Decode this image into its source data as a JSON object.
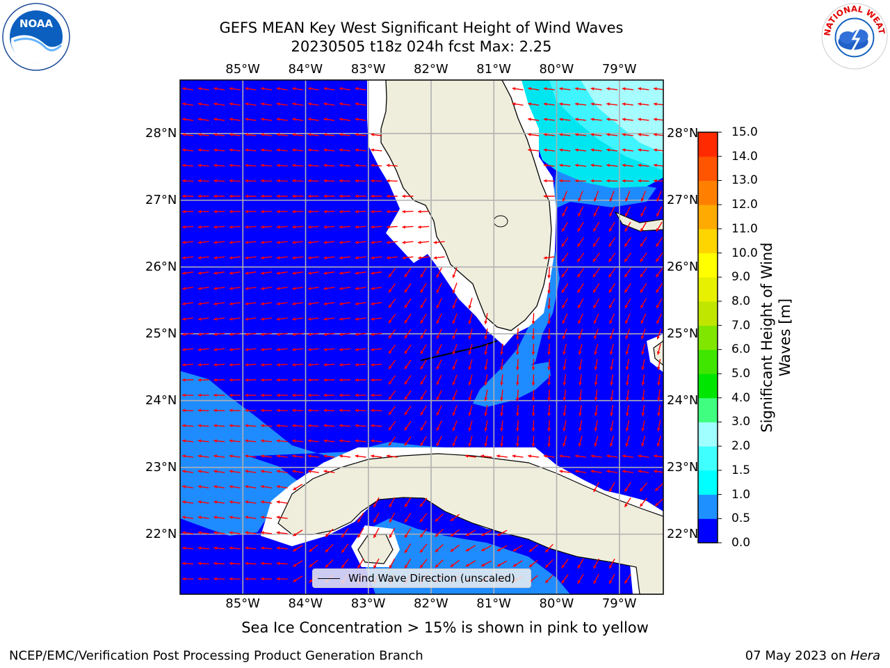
{
  "title": {
    "line1": "GEFS MEAN Key West Significant Height of Wind Waves",
    "line2": "20230505 t18z 024h fcst   Max: 2.25"
  },
  "logos": {
    "left": "NOAA",
    "right": "NATIONAL WEATHER SERVICE"
  },
  "map": {
    "lon_labels": [
      "85°W",
      "84°W",
      "83°W",
      "82°W",
      "81°W",
      "80°W",
      "79°W"
    ],
    "lat_labels": [
      "28°N",
      "27°N",
      "26°N",
      "25°N",
      "24°N",
      "23°N",
      "22°N"
    ],
    "lon_range": [
      -86.0,
      -78.3
    ],
    "lat_range": [
      21.1,
      28.8
    ],
    "legend_label": "Wind Wave Direction (unscaled)",
    "colors": {
      "ocean_low": "#0000ff",
      "land": "#efeedd",
      "arrow": "#ff0000",
      "grid": "#b0b0b0"
    }
  },
  "colorbar": {
    "title": "Significant Height of Wind Waves [m]",
    "title_line1": "Significant Height of Wind",
    "title_line2": "Waves [m]",
    "tick_labels": [
      "15.0",
      "14.0",
      "13.0",
      "12.0",
      "11.0",
      "10.0",
      "9.0",
      "8.0",
      "7.0",
      "6.0",
      "5.0",
      "4.0",
      "3.0",
      "2.0",
      "1.5",
      "1.0",
      "0.5",
      "0.0"
    ],
    "colors": [
      "#0000ff",
      "#1e90ff",
      "#00ffff",
      "#40ffff",
      "#a0ffff",
      "#40ff80",
      "#00e600",
      "#40e600",
      "#80e600",
      "#c0e600",
      "#e6f000",
      "#ffff00",
      "#ffd500",
      "#ffaa00",
      "#ff8000",
      "#ff5500",
      "#ff2a00"
    ]
  },
  "note": "Sea Ice Concentration > 15% is shown in pink to yellow",
  "footer": {
    "left": "NCEP/EMC/Verification Post Processing Product Generation Branch",
    "right_date": "07 May 2023 on ",
    "right_host": "Hera"
  }
}
